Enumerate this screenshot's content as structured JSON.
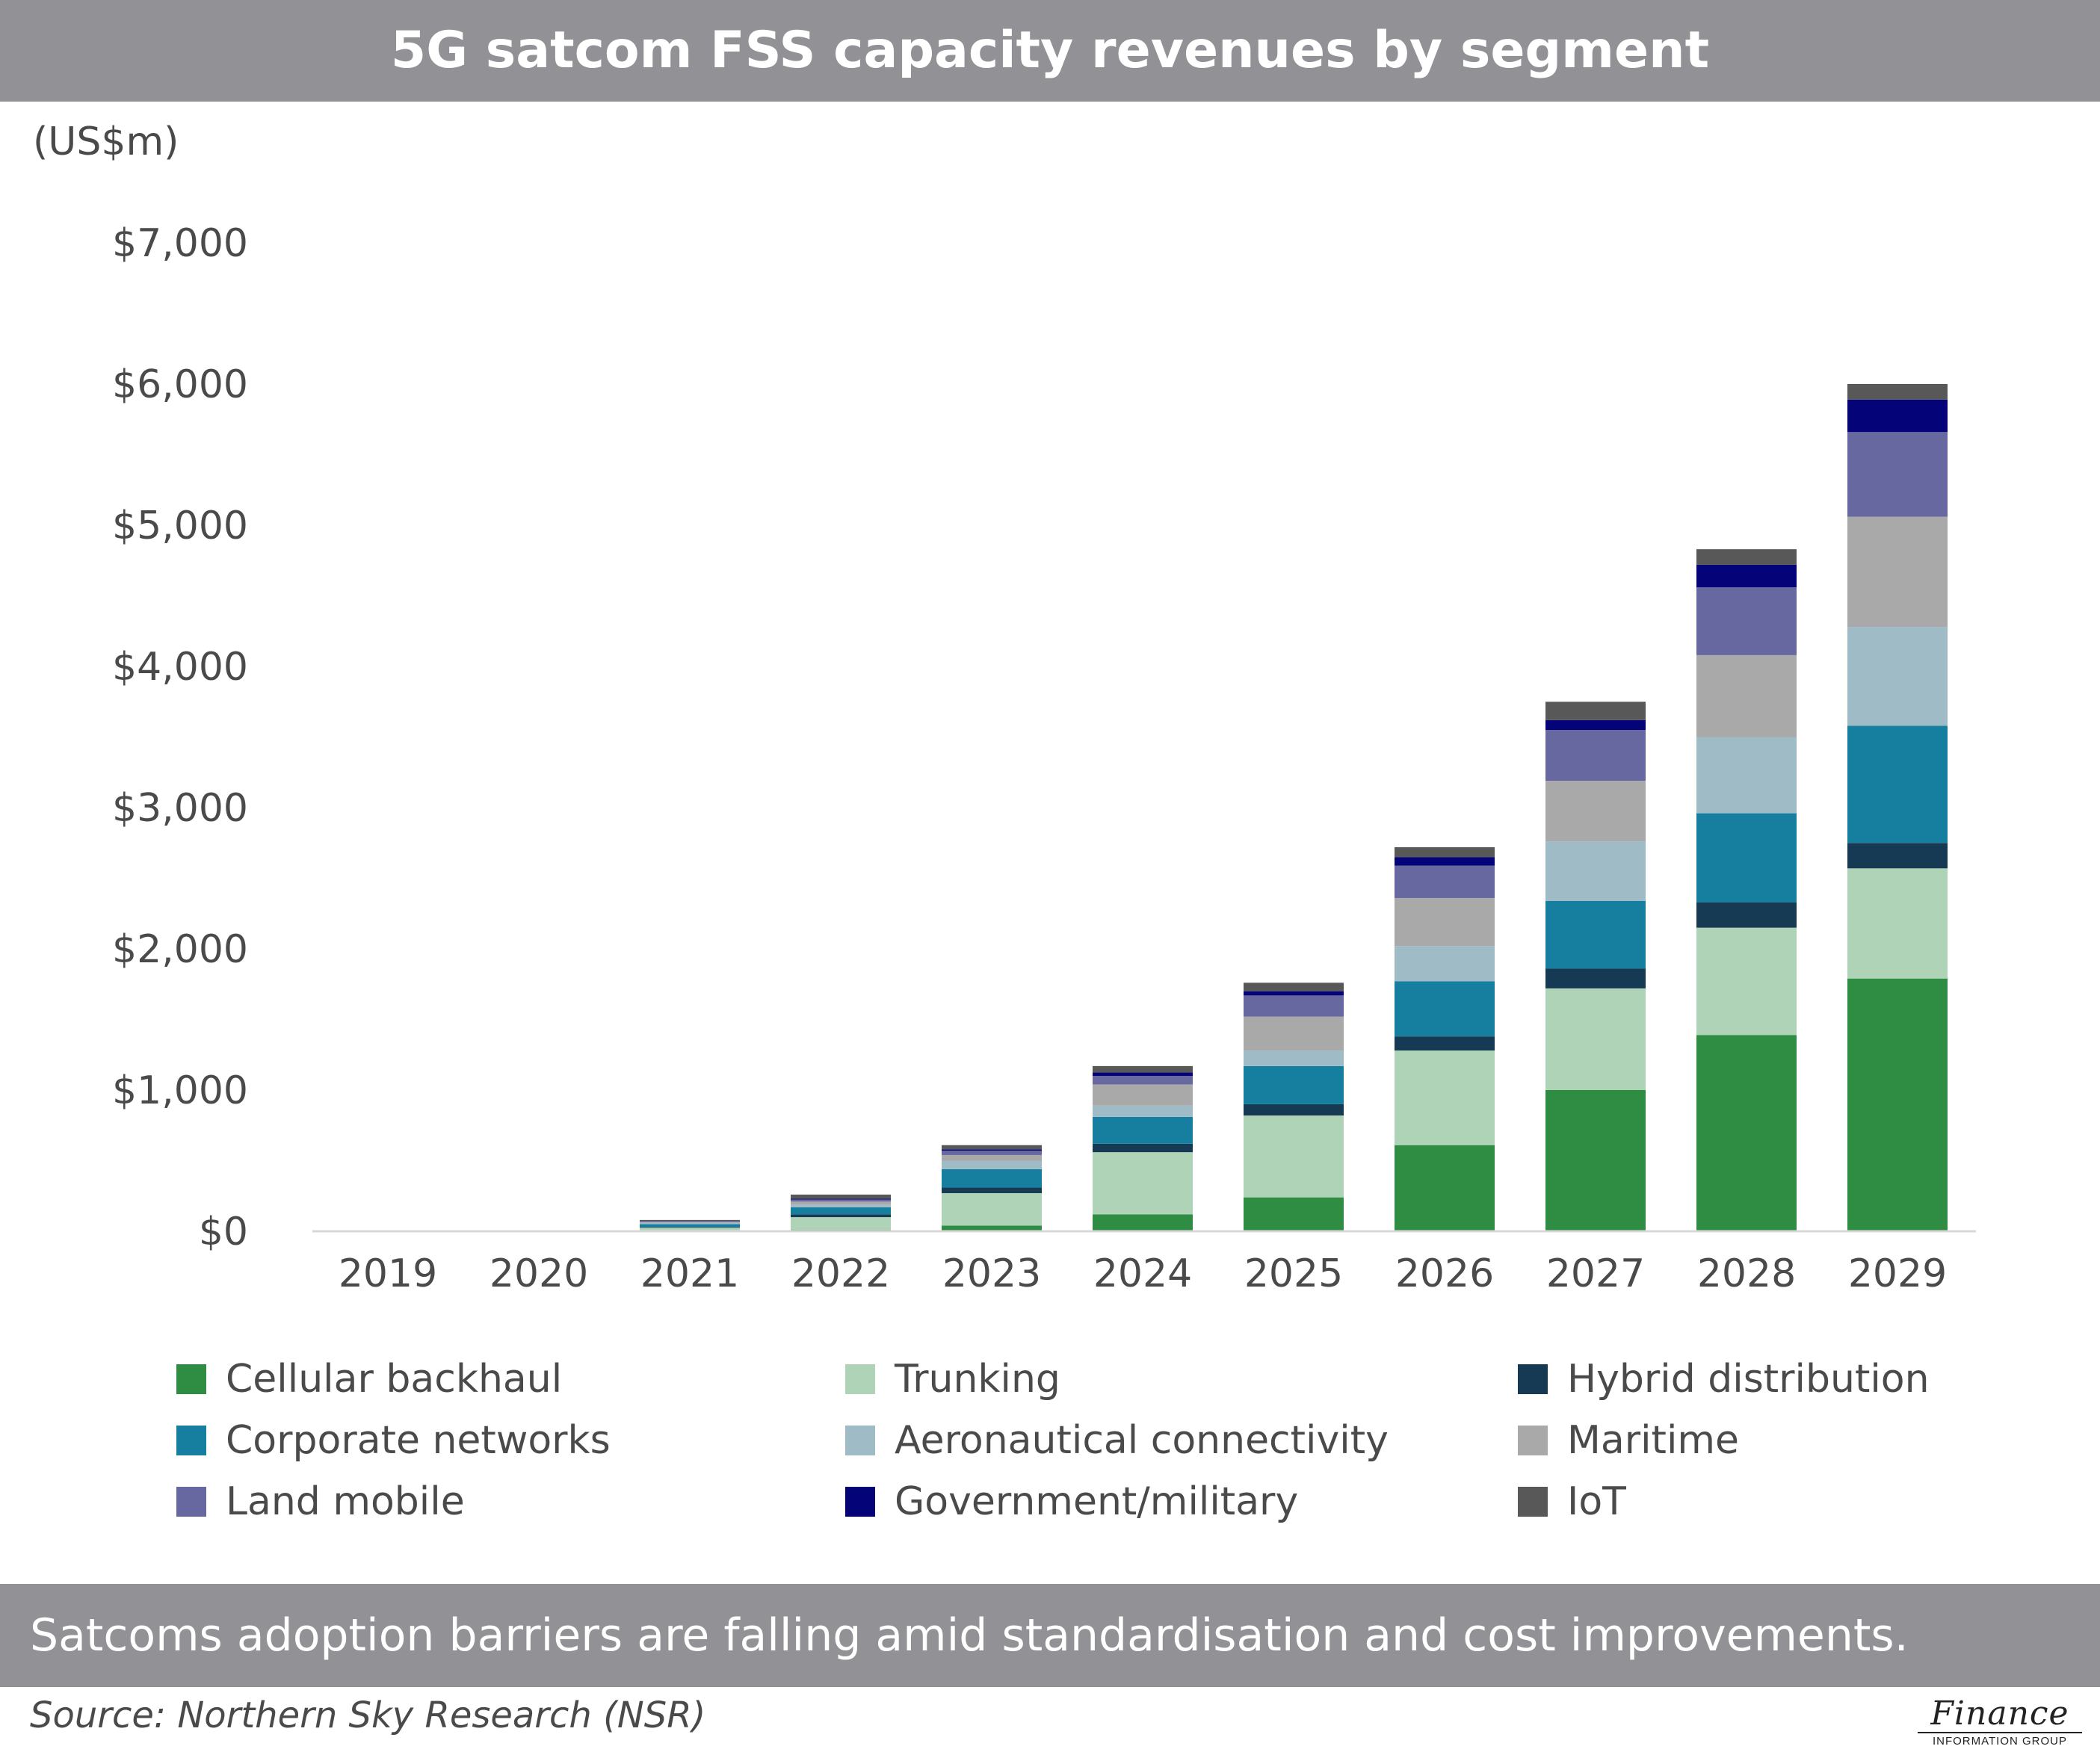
{
  "header": {
    "title": "5G satcom FSS capacity revenues by segment"
  },
  "units_label": "(US$m)",
  "footer": {
    "caption": "Satcoms adoption barriers are falling amid standardisation and cost improvements.",
    "source": "Source: Northern Sky Research (NSR)"
  },
  "logo": {
    "main": "Finance",
    "sub": "INFORMATION GROUP"
  },
  "chart_data": {
    "type": "bar",
    "stacked": true,
    "title": "5G satcom FSS capacity revenues by segment",
    "ylabel": "(US$m)",
    "xlabel": "",
    "ylim": [
      0,
      7000
    ],
    "yticks": [
      0,
      1000,
      2000,
      3000,
      4000,
      5000,
      6000,
      7000
    ],
    "ytick_labels": [
      "$0",
      "$1,000",
      "$2,000",
      "$3,000",
      "$4,000",
      "$5,000",
      "$6,000",
      "$7,000"
    ],
    "grid": false,
    "legend_position": "bottom",
    "categories": [
      "2019",
      "2020",
      "2021",
      "2022",
      "2023",
      "2024",
      "2025",
      "2026",
      "2027",
      "2028",
      "2029"
    ],
    "series": [
      {
        "name": "Cellular backhaul",
        "color": "#2f8c43",
        "values": [
          0,
          0,
          5,
          10,
          40,
          120,
          240,
          610,
          1000,
          1390,
          1790
        ]
      },
      {
        "name": "Trunking",
        "color": "#aed3b6",
        "values": [
          0,
          0,
          20,
          90,
          230,
          440,
          580,
          670,
          720,
          760,
          780
        ]
      },
      {
        "name": "Hybrid distribution",
        "color": "#163a54",
        "values": [
          0,
          0,
          5,
          20,
          40,
          60,
          80,
          100,
          140,
          180,
          180
        ]
      },
      {
        "name": "Corporate networks",
        "color": "#167fa0",
        "values": [
          0,
          0,
          20,
          50,
          130,
          190,
          270,
          390,
          480,
          630,
          830
        ]
      },
      {
        "name": "Aeronautical connectivity",
        "color": "#9fbcc6",
        "values": [
          0,
          0,
          10,
          20,
          60,
          80,
          110,
          250,
          420,
          540,
          700
        ]
      },
      {
        "name": "Maritime",
        "color": "#a9a9a9",
        "values": [
          0,
          0,
          5,
          20,
          40,
          150,
          240,
          340,
          430,
          580,
          780
        ]
      },
      {
        "name": "Land mobile",
        "color": "#6868a0",
        "values": [
          0,
          0,
          5,
          15,
          30,
          60,
          150,
          230,
          360,
          480,
          600
        ]
      },
      {
        "name": "Government/military",
        "color": "#040478",
        "values": [
          0,
          0,
          2,
          5,
          10,
          25,
          30,
          60,
          70,
          160,
          230
        ]
      },
      {
        "name": "IoT",
        "color": "#585858",
        "values": [
          0,
          0,
          8,
          30,
          30,
          45,
          60,
          70,
          130,
          110,
          110
        ]
      }
    ]
  }
}
